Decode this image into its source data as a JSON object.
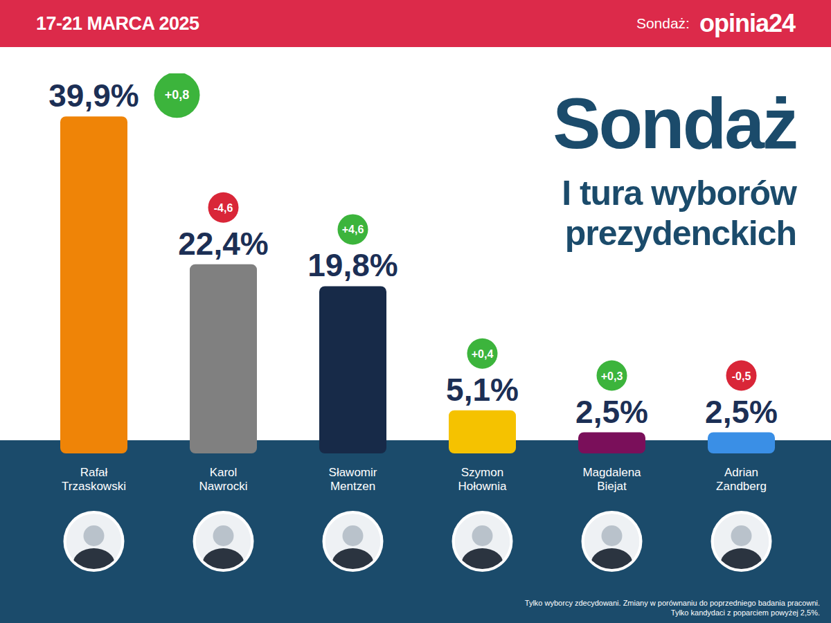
{
  "chart_data": {
    "type": "bar",
    "title": "Sondaż",
    "subtitle": "I tura wyborów prezydenckich",
    "header": {
      "date": "17-21 MARCA 2025",
      "source_label": "Sondaż:",
      "source": "opinia24"
    },
    "categories": [
      "Rafał Trzaskowski",
      "Karol Nawrocki",
      "Sławomir Mentzen",
      "Szymon Hołownia",
      "Magdalena Biejat",
      "Adrian Zandberg"
    ],
    "values": [
      39.9,
      22.4,
      19.8,
      5.1,
      2.5,
      2.5
    ],
    "value_labels": [
      "39,9%",
      "22,4%",
      "19,8%",
      "5,1%",
      "2,5%",
      "2,5%"
    ],
    "changes": [
      0.8,
      -4.6,
      4.6,
      0.4,
      0.3,
      -0.5
    ],
    "change_labels": [
      "+0,8",
      "-4,6",
      "+4,6",
      "+0,4",
      "+0,3",
      "-0,5"
    ],
    "colors": [
      "#ef8407",
      "#808080",
      "#172a48",
      "#f5c200",
      "#7a0f5a",
      "#3a8fe6"
    ],
    "ylim": [
      0,
      45
    ],
    "yticks": [
      0
    ],
    "grid": false,
    "data_labels": true,
    "tick_labels": "x",
    "notes": [
      "Tylko wyborcy zdecydowani. Zmiany w porównaniu do poprzedniego badania pracowni.",
      "Tylko kandydaci z poparciem powyżej 2,5%."
    ]
  }
}
